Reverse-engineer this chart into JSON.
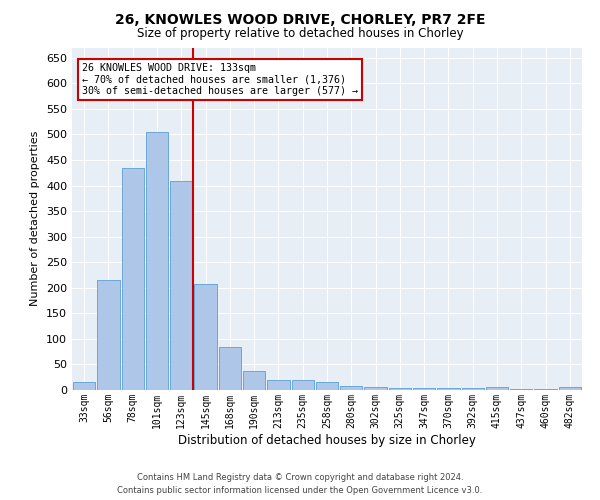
{
  "title1": "26, KNOWLES WOOD DRIVE, CHORLEY, PR7 2FE",
  "title2": "Size of property relative to detached houses in Chorley",
  "xlabel": "Distribution of detached houses by size in Chorley",
  "ylabel": "Number of detached properties",
  "bar_labels": [
    "33sqm",
    "56sqm",
    "78sqm",
    "101sqm",
    "123sqm",
    "145sqm",
    "168sqm",
    "190sqm",
    "213sqm",
    "235sqm",
    "258sqm",
    "280sqm",
    "302sqm",
    "325sqm",
    "347sqm",
    "370sqm",
    "392sqm",
    "415sqm",
    "437sqm",
    "460sqm",
    "482sqm"
  ],
  "bar_heights": [
    15,
    215,
    435,
    505,
    408,
    207,
    85,
    38,
    20,
    20,
    15,
    8,
    5,
    4,
    4,
    4,
    4,
    5,
    2,
    2,
    5
  ],
  "bar_color": "#aec6e8",
  "bar_edge_color": "#5a9fd4",
  "vline_color": "#cc0000",
  "annotation_text": "26 KNOWLES WOOD DRIVE: 133sqm\n← 70% of detached houses are smaller (1,376)\n30% of semi-detached houses are larger (577) →",
  "annotation_box_color": "#ffffff",
  "annotation_box_edge": "#cc0000",
  "ylim": [
    0,
    670
  ],
  "yticks": [
    0,
    50,
    100,
    150,
    200,
    250,
    300,
    350,
    400,
    450,
    500,
    550,
    600,
    650
  ],
  "bg_color": "#e8eef5",
  "footer1": "Contains HM Land Registry data © Crown copyright and database right 2024.",
  "footer2": "Contains public sector information licensed under the Open Government Licence v3.0."
}
